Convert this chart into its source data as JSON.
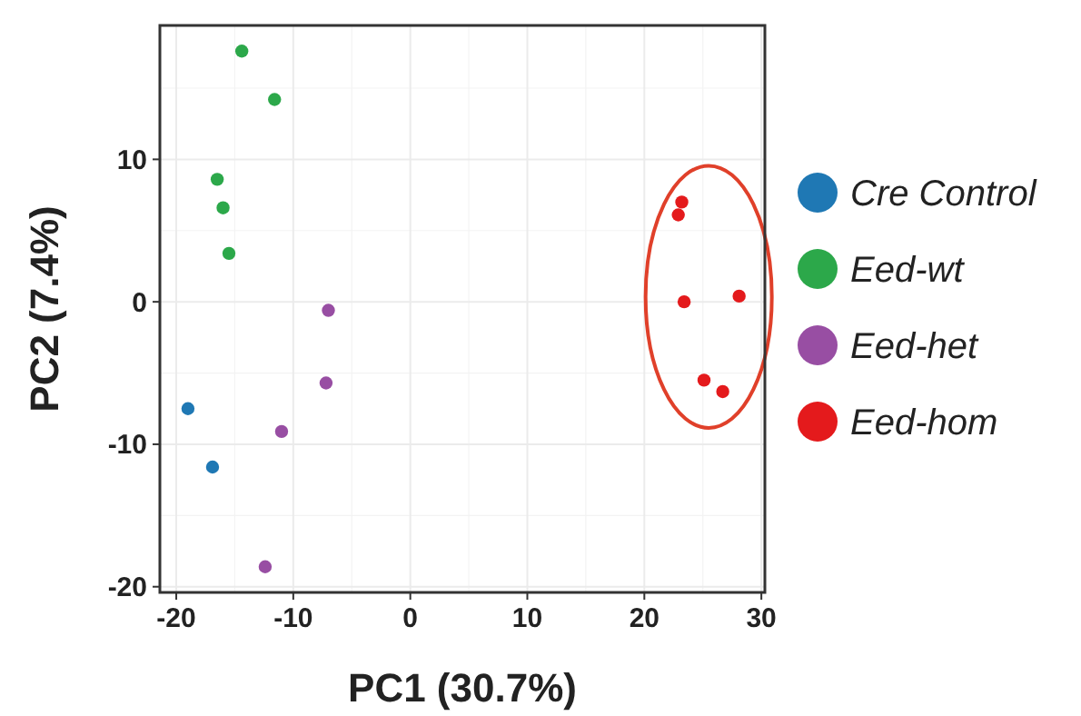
{
  "chart_data": {
    "type": "scatter",
    "xlabel": "PC1 (30.7%)",
    "ylabel": "PC2 (7.4%)",
    "xlim": [
      -21.4,
      30.3
    ],
    "ylim": [
      -20.4,
      19.4
    ],
    "xticks": [
      -20,
      -10,
      0,
      10,
      20,
      30
    ],
    "yticks": [
      -20,
      -10,
      0,
      10
    ],
    "grid": true,
    "legend": "right",
    "marker": "circle",
    "series": [
      {
        "name": "Cre Control",
        "color": "#1f78b4",
        "x": [
          -19.0,
          -16.9
        ],
        "values": [
          -7.5,
          -11.6
        ]
      },
      {
        "name": "Eed-wt",
        "color": "#2ca84a",
        "x": [
          -14.4,
          -11.6,
          -16.5,
          -16.0,
          -15.5
        ],
        "values": [
          17.6,
          14.2,
          8.6,
          6.6,
          3.4
        ]
      },
      {
        "name": "Eed-het",
        "color": "#984ea3",
        "x": [
          -7.0,
          -7.2,
          -11.0,
          -12.4
        ],
        "values": [
          -0.6,
          -5.7,
          -9.1,
          -18.6
        ]
      },
      {
        "name": "Eed-hom",
        "color": "#e41a1c",
        "x": [
          23.2,
          22.9,
          23.4,
          28.1,
          25.1,
          26.7
        ],
        "values": [
          7.0,
          6.1,
          0,
          0.4,
          -5.5,
          -6.3
        ]
      }
    ]
  }
}
